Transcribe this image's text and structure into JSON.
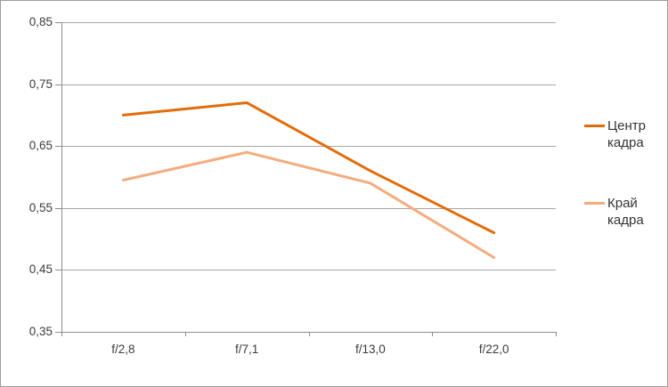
{
  "chart_data": {
    "type": "line",
    "title": "",
    "xlabel": "",
    "ylabel": "",
    "categories": [
      "f/2,8",
      "f/7,1",
      "f/13,0",
      "f/22,0"
    ],
    "series": [
      {
        "name": "Центр кадра",
        "color": "#E36C09",
        "values": [
          0.7,
          0.72,
          0.61,
          0.51
        ]
      },
      {
        "name": "Край кадра",
        "color": "#F5AC7D",
        "values": [
          0.595,
          0.64,
          0.59,
          0.47
        ]
      }
    ],
    "y_axis": {
      "min": 0.35,
      "max": 0.85,
      "step": 0.1,
      "tick_labels": [
        "0,35",
        "0,45",
        "0,55",
        "0,65",
        "0,75",
        "0,85"
      ]
    },
    "grid": "horizontal",
    "legend_position": "right",
    "colors": {
      "gridline": "#A6A6A6",
      "axis": "#8C8C8C",
      "text": "#3B3B3B",
      "border": "#9C9C9C"
    }
  }
}
